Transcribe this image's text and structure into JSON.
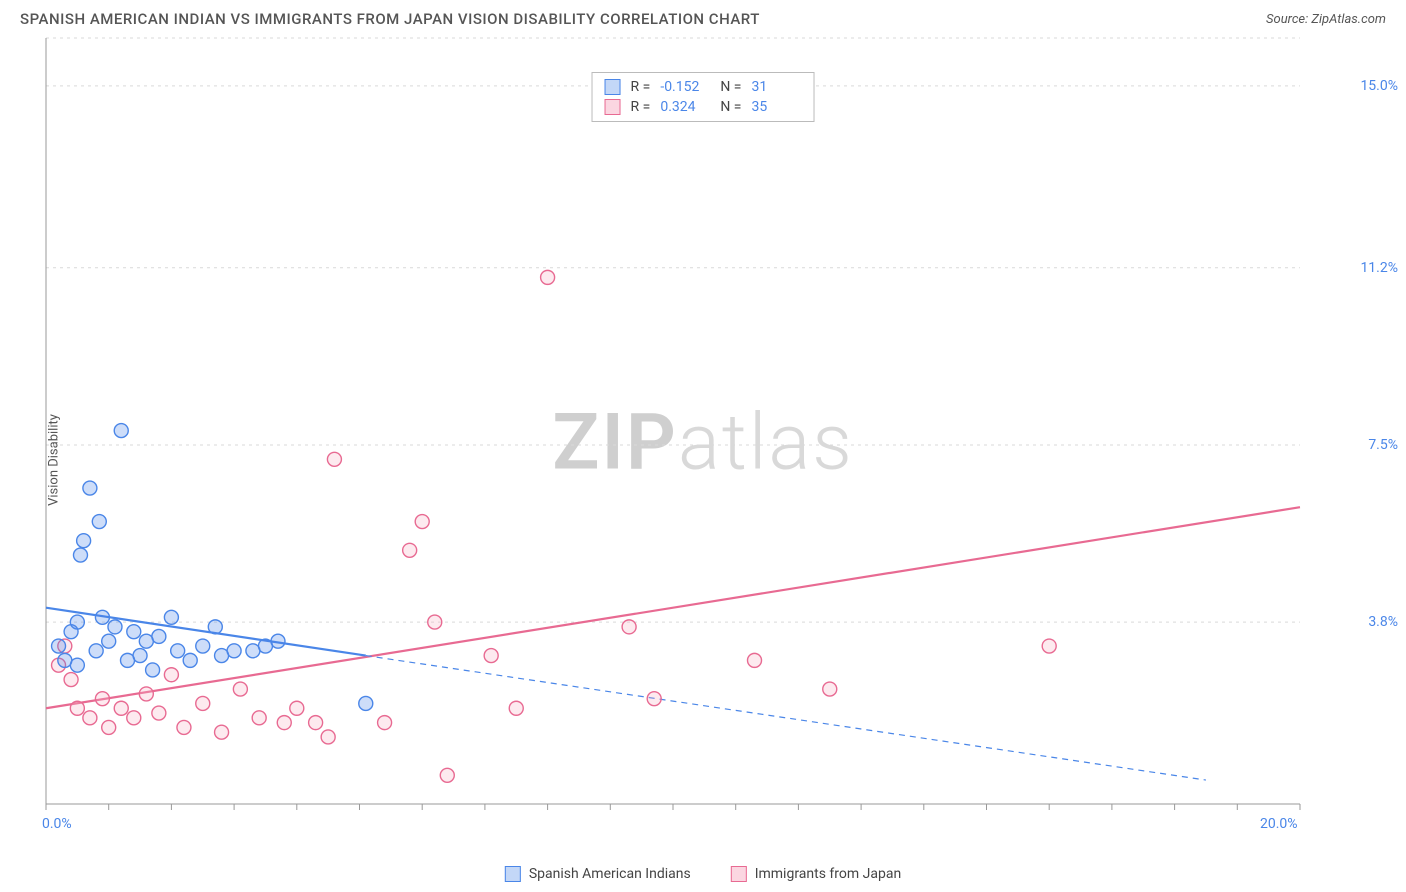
{
  "header": {
    "title": "SPANISH AMERICAN INDIAN VS IMMIGRANTS FROM JAPAN VISION DISABILITY CORRELATION CHART",
    "source": "Source: ZipAtlas.com"
  },
  "watermark_zip": "ZIP",
  "watermark_atlas": "atlas",
  "ylabel": "Vision Disability",
  "chart": {
    "type": "scatter",
    "background_color": "#ffffff",
    "grid_color": "#d9d9d9",
    "axis_color": "#999999",
    "xlim": [
      0,
      20
    ],
    "ylim": [
      0,
      16
    ],
    "x_minor_tick_step": 1.0,
    "y_tick_values": [
      3.8,
      7.5,
      11.2,
      15.0
    ],
    "y_tick_labels": [
      "3.8%",
      "7.5%",
      "11.2%",
      "15.0%"
    ],
    "x_tick_min_label": "0.0%",
    "x_tick_max_label": "20.0%",
    "marker_radius": 7,
    "marker_stroke_width": 1.4,
    "marker_fill_opacity": 0.28,
    "trend_solid_width": 2.2,
    "trend_dash_width": 1.2,
    "trend_dash_pattern": "6,5"
  },
  "series": {
    "blue": {
      "label": "Spanish American Indians",
      "stroke": "#4a86e8",
      "fill": "#4a86e8",
      "R_label": "R =",
      "R_value": "-0.152",
      "N_label": "N =",
      "N_value": "31",
      "trend_solid": {
        "x1": 0.0,
        "y1": 4.1,
        "x2": 5.1,
        "y2": 3.1
      },
      "trend_dash": {
        "x1": 5.1,
        "y1": 3.1,
        "x2": 18.5,
        "y2": 0.5
      },
      "points": [
        [
          0.2,
          3.3
        ],
        [
          0.3,
          3.0
        ],
        [
          0.4,
          3.6
        ],
        [
          0.5,
          2.9
        ],
        [
          0.5,
          3.8
        ],
        [
          0.55,
          5.2
        ],
        [
          0.6,
          5.5
        ],
        [
          0.7,
          6.6
        ],
        [
          0.8,
          3.2
        ],
        [
          0.85,
          5.9
        ],
        [
          0.9,
          3.9
        ],
        [
          1.0,
          3.4
        ],
        [
          1.1,
          3.7
        ],
        [
          1.2,
          7.8
        ],
        [
          1.3,
          3.0
        ],
        [
          1.4,
          3.6
        ],
        [
          1.5,
          3.1
        ],
        [
          1.6,
          3.4
        ],
        [
          1.7,
          2.8
        ],
        [
          1.8,
          3.5
        ],
        [
          2.0,
          3.9
        ],
        [
          2.1,
          3.2
        ],
        [
          2.3,
          3.0
        ],
        [
          2.5,
          3.3
        ],
        [
          2.7,
          3.7
        ],
        [
          2.8,
          3.1
        ],
        [
          3.0,
          3.2
        ],
        [
          3.3,
          3.2
        ],
        [
          3.5,
          3.3
        ],
        [
          3.7,
          3.4
        ],
        [
          5.1,
          2.1
        ]
      ]
    },
    "pink": {
      "label": "Immigrants from Japan",
      "stroke": "#e86a92",
      "fill": "#f7b3c6",
      "R_label": "R =",
      "R_value": "0.324",
      "N_label": "N =",
      "N_value": "35",
      "trend_solid": {
        "x1": 0.0,
        "y1": 2.0,
        "x2": 20.0,
        "y2": 6.2
      },
      "points": [
        [
          0.2,
          2.9
        ],
        [
          0.3,
          3.3
        ],
        [
          0.4,
          2.6
        ],
        [
          0.5,
          2.0
        ],
        [
          0.7,
          1.8
        ],
        [
          0.9,
          2.2
        ],
        [
          1.0,
          1.6
        ],
        [
          1.2,
          2.0
        ],
        [
          1.4,
          1.8
        ],
        [
          1.6,
          2.3
        ],
        [
          1.8,
          1.9
        ],
        [
          2.0,
          2.7
        ],
        [
          2.2,
          1.6
        ],
        [
          2.5,
          2.1
        ],
        [
          2.8,
          1.5
        ],
        [
          3.1,
          2.4
        ],
        [
          3.4,
          1.8
        ],
        [
          3.8,
          1.7
        ],
        [
          4.0,
          2.0
        ],
        [
          4.3,
          1.7
        ],
        [
          4.5,
          1.4
        ],
        [
          4.6,
          7.2
        ],
        [
          5.4,
          1.7
        ],
        [
          5.8,
          5.3
        ],
        [
          6.0,
          5.9
        ],
        [
          6.2,
          3.8
        ],
        [
          6.4,
          0.6
        ],
        [
          7.1,
          3.1
        ],
        [
          7.5,
          2.0
        ],
        [
          8.0,
          11.0
        ],
        [
          9.3,
          3.7
        ],
        [
          9.7,
          2.2
        ],
        [
          11.3,
          3.0
        ],
        [
          12.5,
          2.4
        ],
        [
          16.0,
          3.3
        ]
      ]
    }
  }
}
